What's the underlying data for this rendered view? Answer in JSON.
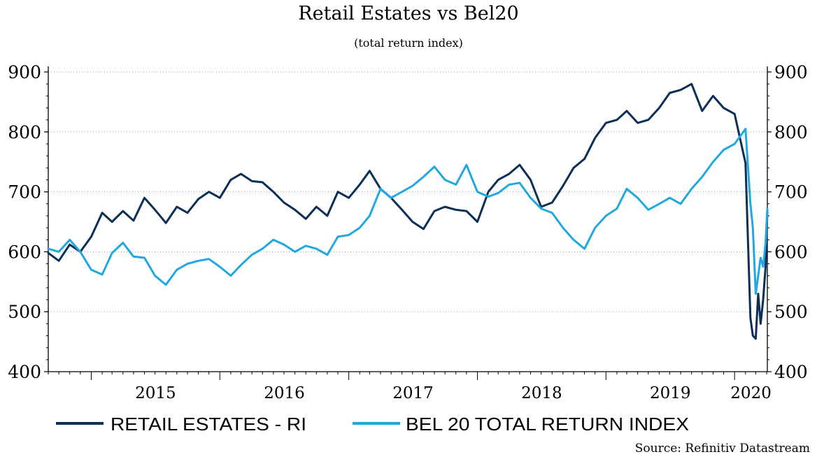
{
  "chart_data": {
    "type": "line",
    "title": "Retail Estates vs Bel20",
    "subtitle": "(total return index)",
    "source": "Source: Refinitiv Datastream",
    "x_tick_labels": [
      "2015",
      "2016",
      "2017",
      "2018",
      "2019",
      "2020"
    ],
    "y_tick_labels": [
      "400",
      "500",
      "600",
      "700",
      "800",
      "900"
    ],
    "ylim": [
      400,
      900
    ],
    "xlim": [
      "2014-09-01",
      "2020-04-03"
    ],
    "grid": "horizontal dotted",
    "legend_position": "bottom",
    "dual_axis": "left and right y-axes share the same scale",
    "series": [
      {
        "name": "RETAIL ESTATES - RI",
        "color": "#0b2f57",
        "points": [
          [
            "2014-09-01",
            598
          ],
          [
            "2014-10-01",
            585
          ],
          [
            "2014-11-01",
            612
          ],
          [
            "2014-12-01",
            600
          ],
          [
            "2015-01-01",
            625
          ],
          [
            "2015-02-01",
            665
          ],
          [
            "2015-03-01",
            650
          ],
          [
            "2015-04-01",
            668
          ],
          [
            "2015-05-01",
            652
          ],
          [
            "2015-06-01",
            690
          ],
          [
            "2015-07-01",
            670
          ],
          [
            "2015-08-01",
            648
          ],
          [
            "2015-09-01",
            675
          ],
          [
            "2015-10-01",
            665
          ],
          [
            "2015-11-01",
            688
          ],
          [
            "2015-12-01",
            700
          ],
          [
            "2016-01-01",
            690
          ],
          [
            "2016-02-01",
            720
          ],
          [
            "2016-03-01",
            730
          ],
          [
            "2016-04-01",
            718
          ],
          [
            "2016-05-01",
            716
          ],
          [
            "2016-06-01",
            700
          ],
          [
            "2016-07-01",
            682
          ],
          [
            "2016-08-01",
            670
          ],
          [
            "2016-09-01",
            655
          ],
          [
            "2016-10-01",
            675
          ],
          [
            "2016-11-01",
            660
          ],
          [
            "2016-12-01",
            700
          ],
          [
            "2017-01-01",
            690
          ],
          [
            "2017-02-01",
            712
          ],
          [
            "2017-03-01",
            735
          ],
          [
            "2017-04-01",
            705
          ],
          [
            "2017-05-01",
            690
          ],
          [
            "2017-06-01",
            670
          ],
          [
            "2017-07-01",
            650
          ],
          [
            "2017-08-01",
            638
          ],
          [
            "2017-09-01",
            668
          ],
          [
            "2017-10-01",
            675
          ],
          [
            "2017-11-01",
            670
          ],
          [
            "2017-12-01",
            668
          ],
          [
            "2018-01-01",
            650
          ],
          [
            "2018-02-01",
            700
          ],
          [
            "2018-03-01",
            720
          ],
          [
            "2018-04-01",
            730
          ],
          [
            "2018-05-01",
            745
          ],
          [
            "2018-06-01",
            720
          ],
          [
            "2018-07-01",
            675
          ],
          [
            "2018-08-01",
            682
          ],
          [
            "2018-09-01",
            710
          ],
          [
            "2018-10-01",
            740
          ],
          [
            "2018-11-01",
            755
          ],
          [
            "2018-12-01",
            790
          ],
          [
            "2019-01-01",
            815
          ],
          [
            "2019-02-01",
            820
          ],
          [
            "2019-03-01",
            835
          ],
          [
            "2019-04-01",
            815
          ],
          [
            "2019-05-01",
            820
          ],
          [
            "2019-06-01",
            840
          ],
          [
            "2019-07-01",
            865
          ],
          [
            "2019-08-01",
            870
          ],
          [
            "2019-09-01",
            880
          ],
          [
            "2019-10-01",
            835
          ],
          [
            "2019-11-01",
            860
          ],
          [
            "2019-12-01",
            840
          ],
          [
            "2020-01-01",
            830
          ],
          [
            "2020-02-01",
            748
          ],
          [
            "2020-02-15",
            490
          ],
          [
            "2020-02-22",
            460
          ],
          [
            "2020-03-01",
            455
          ],
          [
            "2020-03-08",
            530
          ],
          [
            "2020-03-15",
            480
          ],
          [
            "2020-03-22",
            520
          ],
          [
            "2020-03-29",
            575
          ],
          [
            "2020-04-03",
            668
          ]
        ]
      },
      {
        "name": "BEL 20 TOTAL RETURN INDEX",
        "color": "#22a8e0",
        "points": [
          [
            "2014-09-01",
            605
          ],
          [
            "2014-10-01",
            600
          ],
          [
            "2014-11-01",
            620
          ],
          [
            "2014-12-01",
            600
          ],
          [
            "2015-01-01",
            570
          ],
          [
            "2015-02-01",
            562
          ],
          [
            "2015-03-01",
            598
          ],
          [
            "2015-04-01",
            615
          ],
          [
            "2015-05-01",
            592
          ],
          [
            "2015-06-01",
            590
          ],
          [
            "2015-07-01",
            560
          ],
          [
            "2015-08-01",
            545
          ],
          [
            "2015-09-01",
            570
          ],
          [
            "2015-10-01",
            580
          ],
          [
            "2015-11-01",
            585
          ],
          [
            "2015-12-01",
            588
          ],
          [
            "2016-01-01",
            575
          ],
          [
            "2016-02-01",
            560
          ],
          [
            "2016-03-01",
            578
          ],
          [
            "2016-04-01",
            595
          ],
          [
            "2016-05-01",
            605
          ],
          [
            "2016-06-01",
            620
          ],
          [
            "2016-07-01",
            612
          ],
          [
            "2016-08-01",
            600
          ],
          [
            "2016-09-01",
            610
          ],
          [
            "2016-10-01",
            605
          ],
          [
            "2016-11-01",
            595
          ],
          [
            "2016-12-01",
            625
          ],
          [
            "2017-01-01",
            628
          ],
          [
            "2017-02-01",
            640
          ],
          [
            "2017-03-01",
            660
          ],
          [
            "2017-04-01",
            705
          ],
          [
            "2017-05-01",
            690
          ],
          [
            "2017-06-01",
            700
          ],
          [
            "2017-07-01",
            710
          ],
          [
            "2017-08-01",
            725
          ],
          [
            "2017-09-01",
            742
          ],
          [
            "2017-10-01",
            720
          ],
          [
            "2017-11-01",
            712
          ],
          [
            "2017-12-01",
            745
          ],
          [
            "2018-01-01",
            700
          ],
          [
            "2018-02-01",
            692
          ],
          [
            "2018-03-01",
            698
          ],
          [
            "2018-04-01",
            712
          ],
          [
            "2018-05-01",
            715
          ],
          [
            "2018-06-01",
            690
          ],
          [
            "2018-07-01",
            672
          ],
          [
            "2018-08-01",
            665
          ],
          [
            "2018-09-01",
            640
          ],
          [
            "2018-10-01",
            620
          ],
          [
            "2018-11-01",
            605
          ],
          [
            "2018-12-01",
            640
          ],
          [
            "2019-01-01",
            660
          ],
          [
            "2019-02-01",
            672
          ],
          [
            "2019-03-01",
            705
          ],
          [
            "2019-04-01",
            690
          ],
          [
            "2019-05-01",
            670
          ],
          [
            "2019-06-01",
            680
          ],
          [
            "2019-07-01",
            690
          ],
          [
            "2019-08-01",
            680
          ],
          [
            "2019-09-01",
            705
          ],
          [
            "2019-10-01",
            725
          ],
          [
            "2019-11-01",
            750
          ],
          [
            "2019-12-01",
            770
          ],
          [
            "2020-01-01",
            780
          ],
          [
            "2020-02-01",
            805
          ],
          [
            "2020-02-15",
            680
          ],
          [
            "2020-02-22",
            640
          ],
          [
            "2020-03-01",
            530
          ],
          [
            "2020-03-08",
            560
          ],
          [
            "2020-03-15",
            590
          ],
          [
            "2020-03-22",
            575
          ],
          [
            "2020-03-29",
            615
          ],
          [
            "2020-04-03",
            672
          ]
        ]
      }
    ]
  }
}
